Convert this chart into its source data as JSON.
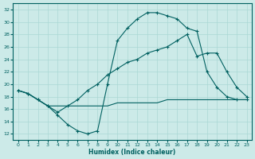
{
  "xlabel": "Humidex (Indice chaleur)",
  "xlim": [
    -0.5,
    23.5
  ],
  "ylim": [
    11,
    33
  ],
  "yticks": [
    12,
    14,
    16,
    18,
    20,
    22,
    24,
    26,
    28,
    30,
    32
  ],
  "xticks": [
    0,
    1,
    2,
    3,
    4,
    5,
    6,
    7,
    8,
    9,
    10,
    11,
    12,
    13,
    14,
    15,
    16,
    17,
    18,
    19,
    20,
    21,
    22,
    23
  ],
  "bg_color": "#cceae8",
  "grid_color": "#aad8d4",
  "line_color": "#006060",
  "line1_x": [
    0,
    1,
    2,
    3,
    4,
    5,
    6,
    7,
    8,
    9,
    10,
    11,
    12,
    13,
    14,
    15,
    16,
    17,
    18,
    19,
    20,
    21,
    22,
    23
  ],
  "line1_y": [
    19.0,
    18.5,
    17.5,
    16.5,
    15.0,
    13.5,
    12.5,
    12.0,
    12.5,
    20.0,
    27.0,
    29.0,
    30.5,
    31.5,
    31.5,
    31.0,
    30.5,
    29.0,
    28.5,
    22.0,
    19.5,
    18.0,
    17.5,
    17.5
  ],
  "line2_x": [
    0,
    1,
    2,
    3,
    4,
    5,
    6,
    7,
    8,
    9,
    10,
    11,
    12,
    13,
    14,
    15,
    16,
    17,
    18,
    19,
    20,
    21,
    22,
    23
  ],
  "line2_y": [
    19.0,
    18.5,
    17.5,
    16.5,
    15.5,
    16.5,
    17.5,
    19.0,
    20.0,
    21.5,
    22.5,
    23.5,
    24.0,
    25.0,
    25.5,
    26.0,
    27.0,
    28.0,
    24.5,
    25.0,
    25.0,
    22.0,
    19.5,
    18.0
  ],
  "line3_x": [
    0,
    1,
    2,
    3,
    4,
    5,
    6,
    7,
    8,
    9,
    10,
    11,
    12,
    13,
    14,
    15,
    16,
    17,
    18,
    19,
    20,
    21,
    22,
    23
  ],
  "line3_y": [
    19.0,
    18.5,
    17.5,
    16.5,
    16.5,
    16.5,
    16.5,
    16.5,
    16.5,
    16.5,
    17.0,
    17.0,
    17.0,
    17.0,
    17.0,
    17.5,
    17.5,
    17.5,
    17.5,
    17.5,
    17.5,
    17.5,
    17.5,
    17.5
  ]
}
